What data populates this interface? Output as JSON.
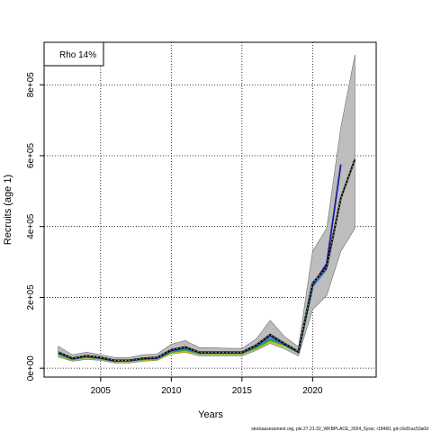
{
  "chart_data": {
    "type": "line",
    "title": "",
    "xlabel": "Years",
    "ylabel": "Recruits (age 1)",
    "xlim": [
      2001,
      2024.5
    ],
    "ylim": [
      -25000,
      920000
    ],
    "x_ticks": [
      2005,
      2010,
      2015,
      2020
    ],
    "x_tick_labels": [
      "2005",
      "2010",
      "2015",
      "2020"
    ],
    "y_ticks": [
      0,
      200000,
      400000,
      600000,
      800000
    ],
    "y_tick_labels": [
      "0e+00",
      "2e+05",
      "4e+05",
      "6e+05",
      "8e+05"
    ],
    "grid": true,
    "legend": {
      "placement": "top-left",
      "entries": [
        "Rho 14%"
      ]
    },
    "footnote": "stockassessment.org, ple.27.21-32_WKBPLACE_2024_5yssr, r18460, git:c9c81ac53a0d",
    "band": {
      "x": [
        2002,
        2003,
        2004,
        2005,
        2006,
        2007,
        2008,
        2009,
        2010,
        2011,
        2012,
        2013,
        2014,
        2015,
        2016,
        2017,
        2018,
        2019,
        2020,
        2021,
        2022,
        2023
      ],
      "lower": [
        32000,
        20000,
        25000,
        22000,
        15000,
        15000,
        20000,
        22000,
        40000,
        45000,
        35000,
        35000,
        35000,
        35000,
        50000,
        70000,
        55000,
        35000,
        165000,
        205000,
        330000,
        395000
      ],
      "upper": [
        62000,
        38000,
        45000,
        38000,
        30000,
        30000,
        38000,
        40000,
        68000,
        78000,
        58000,
        58000,
        56000,
        56000,
        82000,
        135000,
        90000,
        60000,
        330000,
        395000,
        680000,
        885000
      ]
    },
    "series": [
      {
        "color": "#000000",
        "dashed": true,
        "x": [
          2002,
          2003,
          2004,
          2005,
          2006,
          2007,
          2008,
          2009,
          2010,
          2011,
          2012,
          2013,
          2014,
          2015,
          2016,
          2017,
          2018,
          2019,
          2020,
          2021,
          2022,
          2023
        ],
        "y": [
          45000,
          28000,
          35000,
          30000,
          22000,
          22000,
          28000,
          30000,
          52000,
          60000,
          45000,
          45000,
          45000,
          45000,
          65000,
          95000,
          70000,
          47000,
          240000,
          285000,
          480000,
          590000
        ]
      },
      {
        "color": "#1a1aa6",
        "x": [
          2002,
          2003,
          2004,
          2005,
          2006,
          2007,
          2008,
          2009,
          2010,
          2011,
          2012,
          2013,
          2014,
          2015,
          2016,
          2017,
          2018,
          2019,
          2020,
          2021,
          2022
        ],
        "y": [
          44000,
          27000,
          34000,
          29000,
          21000,
          22000,
          27000,
          29000,
          50000,
          58000,
          44000,
          44000,
          44000,
          44000,
          63000,
          92000,
          68000,
          46000,
          235000,
          295000,
          575000
        ]
      },
      {
        "color": "#2e86c1",
        "x": [
          2002,
          2003,
          2004,
          2005,
          2006,
          2007,
          2008,
          2009,
          2010,
          2011,
          2012,
          2013,
          2014,
          2015,
          2016,
          2017,
          2018,
          2019,
          2020,
          2021
        ],
        "y": [
          42000,
          26000,
          33000,
          28000,
          20000,
          21000,
          26000,
          28000,
          48000,
          55000,
          43000,
          43000,
          43000,
          43000,
          60000,
          85000,
          68000,
          45000,
          230000,
          280000
        ]
      },
      {
        "color": "#2ca02c",
        "x": [
          2002,
          2003,
          2004,
          2005,
          2006,
          2007,
          2008,
          2009,
          2010,
          2011,
          2012,
          2013,
          2014,
          2015,
          2016,
          2017,
          2018,
          2019,
          2020
        ],
        "y": [
          40000,
          25000,
          32000,
          27000,
          20000,
          21000,
          25000,
          27000,
          46000,
          52000,
          42000,
          42000,
          42000,
          42000,
          58000,
          80000,
          66000,
          44000,
          225000
        ]
      },
      {
        "color": "#9acd32",
        "x": [
          2002,
          2003,
          2004,
          2005,
          2006,
          2007,
          2008,
          2009,
          2010,
          2011,
          2012,
          2013,
          2014,
          2015,
          2016,
          2017,
          2018,
          2019
        ],
        "y": [
          38000,
          24000,
          31000,
          26000,
          19000,
          20000,
          24000,
          26000,
          44000,
          50000,
          41000,
          41000,
          41000,
          41000,
          56000,
          78000,
          64000,
          43000
        ]
      },
      {
        "color": "#d4b800",
        "x": [
          2002,
          2003,
          2004,
          2005,
          2006,
          2007,
          2008,
          2009,
          2010,
          2011,
          2012,
          2013,
          2014,
          2015,
          2016,
          2017,
          2018
        ],
        "y": [
          37000,
          23000,
          30000,
          25000,
          19000,
          19000,
          23000,
          25000,
          42000,
          48000,
          40000,
          40000,
          40000,
          40000,
          54000,
          75000,
          62000
        ]
      }
    ]
  }
}
